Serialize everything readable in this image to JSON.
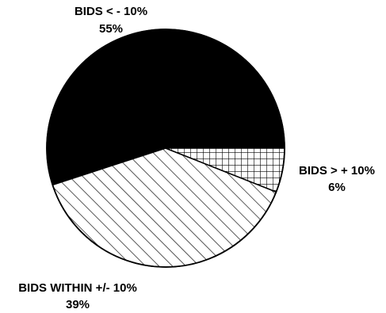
{
  "chart_data": {
    "type": "pie",
    "start_angle_deg": 0,
    "direction": "counterclockwise",
    "slices": [
      {
        "label": "BIDS < - 10%",
        "percent_label": "55%",
        "value": 55,
        "fill": "solid-black"
      },
      {
        "label": "BIDS WITHIN +/- 10%",
        "percent_label": "39%",
        "value": 39,
        "fill": "diagonal-hatch"
      },
      {
        "label": "BIDS > + 10%",
        "percent_label": "6%",
        "value": 6,
        "fill": "grid-hatch"
      }
    ],
    "legend": "none"
  },
  "colors": {
    "ink": "#000000",
    "background": "#ffffff"
  }
}
